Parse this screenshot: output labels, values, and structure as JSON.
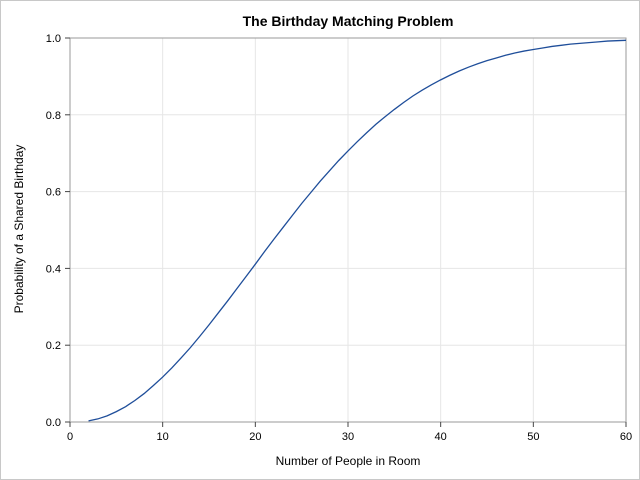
{
  "chart_data": {
    "type": "line",
    "title": "The Birthday Matching Problem",
    "xlabel": "Number of People in Room",
    "ylabel": "Probability of a Shared Birthday",
    "xlim": [
      0,
      60
    ],
    "ylim": [
      0.0,
      1.0
    ],
    "x_ticks": [
      "0",
      "10",
      "20",
      "30",
      "40",
      "50",
      "60"
    ],
    "y_ticks": [
      "0.0",
      "0.2",
      "0.4",
      "0.6",
      "0.8",
      "1.0"
    ],
    "grid": true,
    "legend": "none",
    "line_color": "#1f4e9a",
    "series": [
      {
        "x": [
          2,
          3,
          4,
          5,
          6,
          7,
          8,
          9,
          10,
          11,
          12,
          13,
          14,
          15,
          16,
          17,
          18,
          19,
          20,
          21,
          22,
          23,
          24,
          25,
          26,
          27,
          28,
          29,
          30,
          31,
          32,
          33,
          34,
          35,
          36,
          37,
          38,
          39,
          40,
          41,
          42,
          43,
          44,
          45,
          46,
          47,
          48,
          49,
          50,
          51,
          52,
          53,
          54,
          55,
          56,
          57,
          58,
          59,
          60
        ],
        "values": [
          0.003,
          0.008,
          0.016,
          0.027,
          0.04,
          0.056,
          0.074,
          0.095,
          0.117,
          0.141,
          0.167,
          0.194,
          0.223,
          0.253,
          0.284,
          0.315,
          0.347,
          0.379,
          0.411,
          0.444,
          0.476,
          0.507,
          0.538,
          0.569,
          0.598,
          0.627,
          0.654,
          0.681,
          0.706,
          0.73,
          0.753,
          0.775,
          0.795,
          0.814,
          0.832,
          0.849,
          0.864,
          0.878,
          0.891,
          0.903,
          0.914,
          0.924,
          0.933,
          0.941,
          0.948,
          0.955,
          0.961,
          0.966,
          0.97,
          0.974,
          0.978,
          0.981,
          0.984,
          0.986,
          0.988,
          0.99,
          0.992,
          0.993,
          0.994
        ]
      }
    ]
  }
}
